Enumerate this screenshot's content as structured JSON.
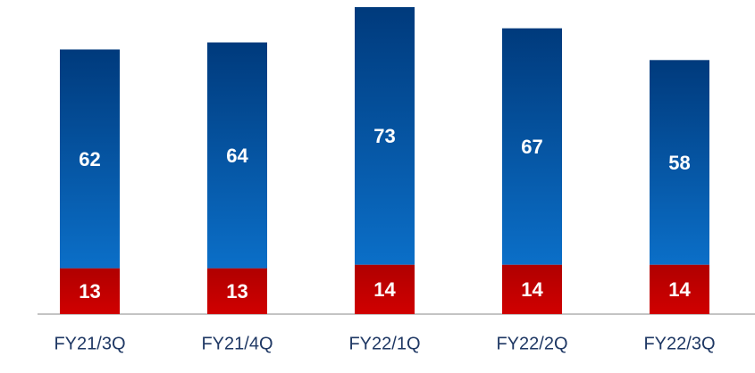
{
  "chart_data": {
    "type": "stacked_bar",
    "categories": [
      "FY21/3Q",
      "FY21/4Q",
      "FY22/1Q",
      "FY22/2Q",
      "FY22/3Q"
    ],
    "series": [
      {
        "color": "#c00000",
        "values": [
          13,
          13,
          14,
          14,
          14
        ]
      },
      {
        "color": "#0a5cb0",
        "values": [
          62,
          64,
          73,
          67,
          58
        ]
      }
    ]
  }
}
